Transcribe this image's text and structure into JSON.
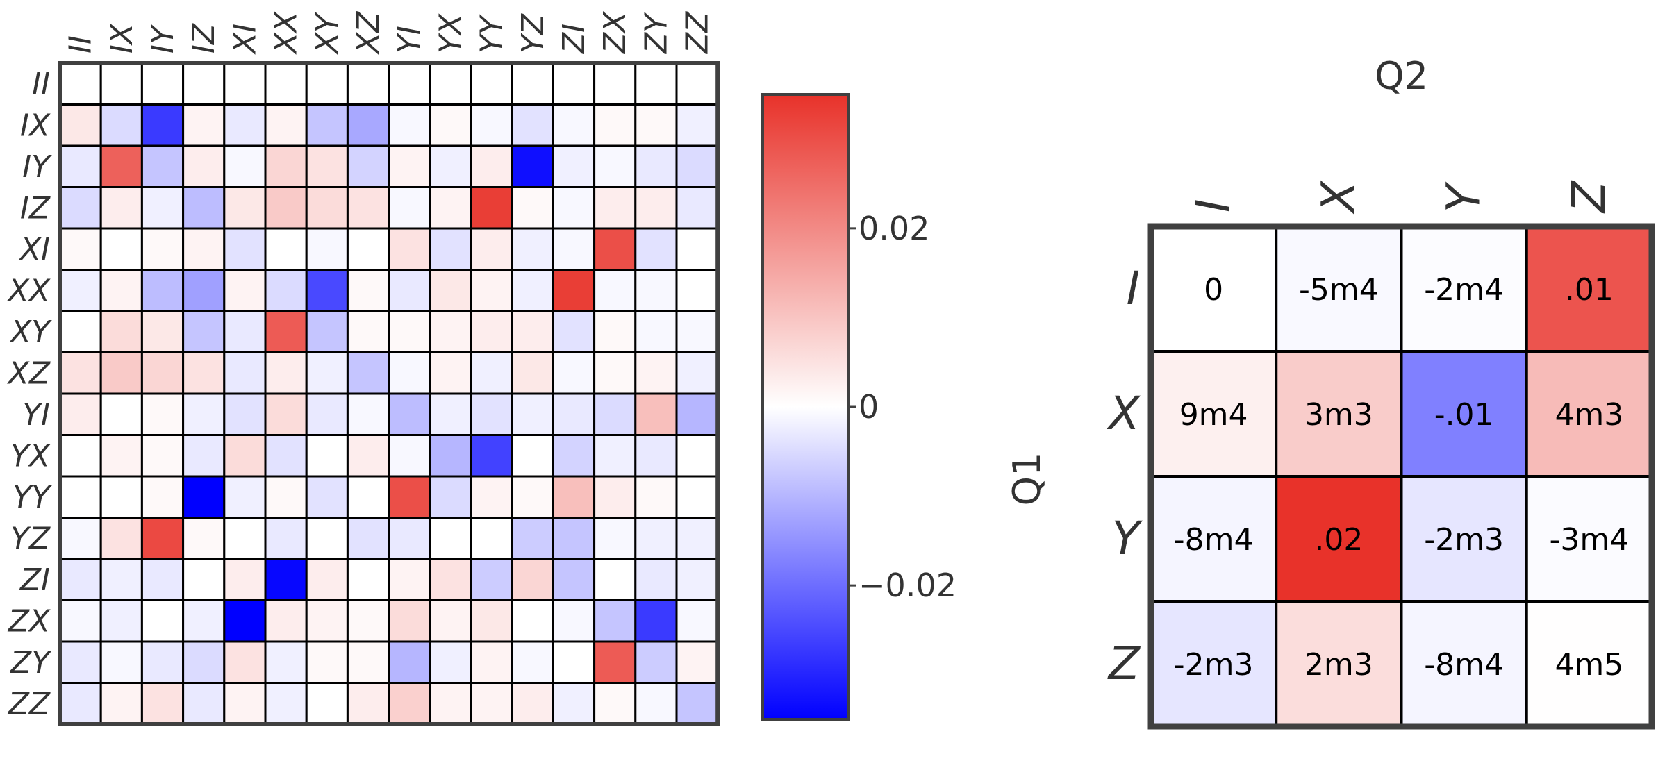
{
  "chart_data": [
    {
      "type": "heatmap",
      "labels": [
        "II",
        "IX",
        "IY",
        "IZ",
        "XI",
        "XX",
        "XY",
        "XZ",
        "YI",
        "YX",
        "YY",
        "YZ",
        "ZI",
        "ZX",
        "ZY",
        "ZZ"
      ],
      "values": [
        [
          0,
          0,
          0,
          0,
          0,
          0,
          0,
          0,
          0,
          0,
          0,
          0,
          0,
          0,
          0,
          0
        ],
        [
          0.004,
          -0.005,
          -0.027,
          0.002,
          -0.003,
          0.002,
          -0.008,
          -0.012,
          -0.001,
          0.001,
          -0.001,
          -0.004,
          -0.001,
          0.001,
          0.001,
          -0.002
        ],
        [
          -0.003,
          0.027,
          -0.008,
          0.003,
          -0.001,
          0.007,
          0.005,
          -0.006,
          0.002,
          -0.002,
          0.003,
          -0.033,
          -0.002,
          -0.001,
          -0.003,
          -0.005
        ],
        [
          -0.005,
          0.003,
          -0.002,
          -0.009,
          0.004,
          0.009,
          0.006,
          0.005,
          -0.001,
          0.002,
          0.033,
          0.001,
          -0.001,
          0.003,
          0.003,
          -0.003
        ],
        [
          0.001,
          0,
          0.001,
          0.002,
          -0.004,
          0,
          -0.001,
          0,
          0.005,
          -0.004,
          0.003,
          -0.002,
          -0.001,
          0.03,
          -0.004,
          0
        ],
        [
          -0.002,
          0.002,
          -0.009,
          -0.013,
          0.002,
          -0.005,
          -0.025,
          0.001,
          -0.003,
          0.004,
          0.002,
          -0.002,
          0.033,
          -0.001,
          -0.001,
          0
        ],
        [
          0,
          0.006,
          0.004,
          -0.008,
          -0.003,
          0.028,
          -0.008,
          0.001,
          0.001,
          0.002,
          0.003,
          0.003,
          -0.004,
          0.001,
          -0.001,
          -0.001
        ],
        [
          0.005,
          0.009,
          0.007,
          0.005,
          -0.003,
          0.003,
          -0.002,
          -0.008,
          -0.001,
          0.002,
          -0.002,
          0.004,
          -0.001,
          0.001,
          0.002,
          -0.002
        ],
        [
          0.003,
          0,
          0.001,
          -0.002,
          -0.004,
          0.006,
          -0.003,
          -0.001,
          -0.009,
          -0.002,
          -0.004,
          -0.002,
          -0.003,
          -0.005,
          0.011,
          -0.01
        ],
        [
          0,
          0.002,
          0.001,
          -0.003,
          0.006,
          -0.004,
          0,
          0.003,
          -0.001,
          -0.01,
          -0.026,
          0,
          -0.006,
          -0.002,
          -0.003,
          0
        ],
        [
          0,
          0,
          0.001,
          -0.035,
          -0.002,
          0.001,
          -0.004,
          0,
          0.03,
          -0.005,
          0.002,
          0.001,
          0.011,
          0.003,
          0.001,
          0
        ],
        [
          -0.001,
          0.005,
          0.031,
          0.001,
          0,
          -0.003,
          0,
          -0.004,
          -0.003,
          0,
          0,
          -0.007,
          -0.008,
          -0.001,
          -0.002,
          -0.002
        ],
        [
          -0.003,
          -0.002,
          -0.003,
          0,
          0.003,
          -0.034,
          0.003,
          0,
          0.002,
          0.005,
          -0.007,
          0.007,
          -0.008,
          0,
          -0.003,
          -0.002
        ],
        [
          -0.001,
          -0.002,
          0,
          -0.002,
          -0.035,
          0.003,
          0.002,
          0.001,
          0.006,
          0.002,
          0.004,
          0,
          -0.001,
          -0.008,
          -0.027,
          -0.001
        ],
        [
          -0.003,
          -0.001,
          -0.003,
          -0.005,
          0.005,
          -0.002,
          0.001,
          0.001,
          -0.01,
          -0.002,
          0.002,
          -0.001,
          0,
          0.028,
          -0.007,
          0.002
        ],
        [
          -0.003,
          0.002,
          0.005,
          -0.003,
          0.002,
          -0.002,
          0,
          0.003,
          0.008,
          0.002,
          0.002,
          0.003,
          -0.002,
          0.001,
          -0.001,
          -0.008
        ]
      ],
      "colorbar": {
        "ticks": [
          0.02,
          0,
          -0.02
        ],
        "tick_labels": [
          "0.02",
          "0",
          "−0.02"
        ],
        "vmin": -0.035,
        "vmax": 0.035
      }
    },
    {
      "type": "heatmap",
      "xlabel": "Q2",
      "ylabel": "Q1",
      "x_labels": [
        "I",
        "X",
        "Y",
        "Z"
      ],
      "y_labels": [
        "I",
        "X",
        "Y",
        "Z"
      ],
      "values": [
        [
          0,
          -0.0005,
          -0.0002,
          0.01
        ],
        [
          0.0009,
          0.003,
          -0.01,
          0.004
        ],
        [
          -0.0008,
          0.02,
          -0.002,
          -0.0003
        ],
        [
          -0.002,
          0.002,
          -0.0008,
          4e-05
        ]
      ],
      "cell_text": [
        [
          "0",
          "-5m4",
          "-2m4",
          ".01"
        ],
        [
          "9m4",
          "3m3",
          "-.01",
          "4m3"
        ],
        [
          "-8m4",
          ".02",
          "-2m3",
          "-3m4"
        ],
        [
          "-2m3",
          "2m3",
          "-8m4",
          "4m5"
        ]
      ],
      "color_scale": {
        "vmin": -0.02,
        "vmax": 0.012
      }
    }
  ],
  "colors": {
    "negative": "#0000ff",
    "zero": "#ffffff",
    "positive": "#e8322a",
    "grid": "#000000",
    "frame": "#404040"
  }
}
